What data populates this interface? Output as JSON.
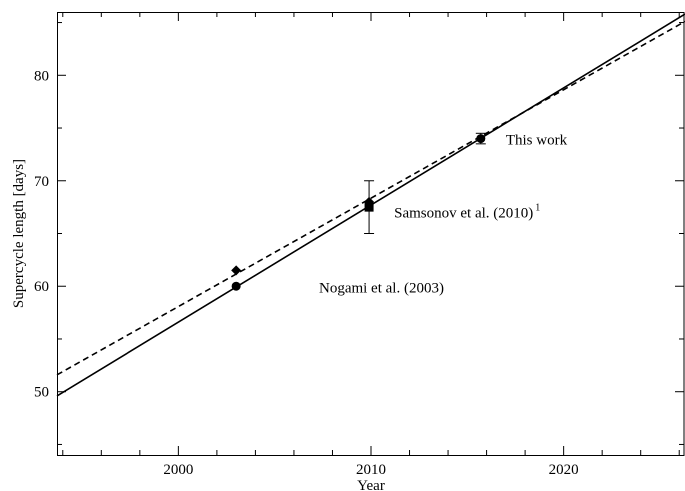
{
  "chart_data": {
    "type": "scatter",
    "title": "",
    "xlabel": "Year",
    "ylabel": "Supercycle length [days]",
    "xlim": [
      1993.7,
      2026.3
    ],
    "ylim": [
      44,
      86
    ],
    "x_ticks": [
      2000,
      2010,
      2020
    ],
    "y_ticks": [
      50,
      60,
      70,
      80
    ],
    "x_minor_step": 2,
    "y_minor_step": 5,
    "grid": false,
    "legend": "none",
    "lines": [
      {
        "style": "solid",
        "points": [
          [
            1993.7,
            49.6
          ],
          [
            2026.3,
            85.8
          ]
        ]
      },
      {
        "style": "dashed",
        "points": [
          [
            1993.7,
            51.6
          ],
          [
            2026.3,
            85.1
          ]
        ]
      }
    ],
    "points": [
      {
        "x": 2003,
        "y": 60,
        "marker": "circle"
      },
      {
        "x": 2003,
        "y": 61.5,
        "marker": "diamond"
      },
      {
        "x": 2009.9,
        "y": 68,
        "marker": "diamond"
      },
      {
        "x": 2009.9,
        "y": 67.5,
        "marker": "square",
        "error": [
          65,
          70
        ]
      },
      {
        "x": 2015.7,
        "y": 74,
        "marker": "circle",
        "error": [
          73.5,
          74.5
        ]
      }
    ],
    "annotations": [
      {
        "text": "Nogami et al. (2003)",
        "sup": "",
        "x": 2007.3,
        "y": 59.9
      },
      {
        "text": "Samsonov et al. (2010)",
        "sup": "1",
        "x": 2011.2,
        "y": 67.0
      },
      {
        "text": "This work",
        "sup": "",
        "x": 2017.0,
        "y": 73.9
      }
    ]
  }
}
